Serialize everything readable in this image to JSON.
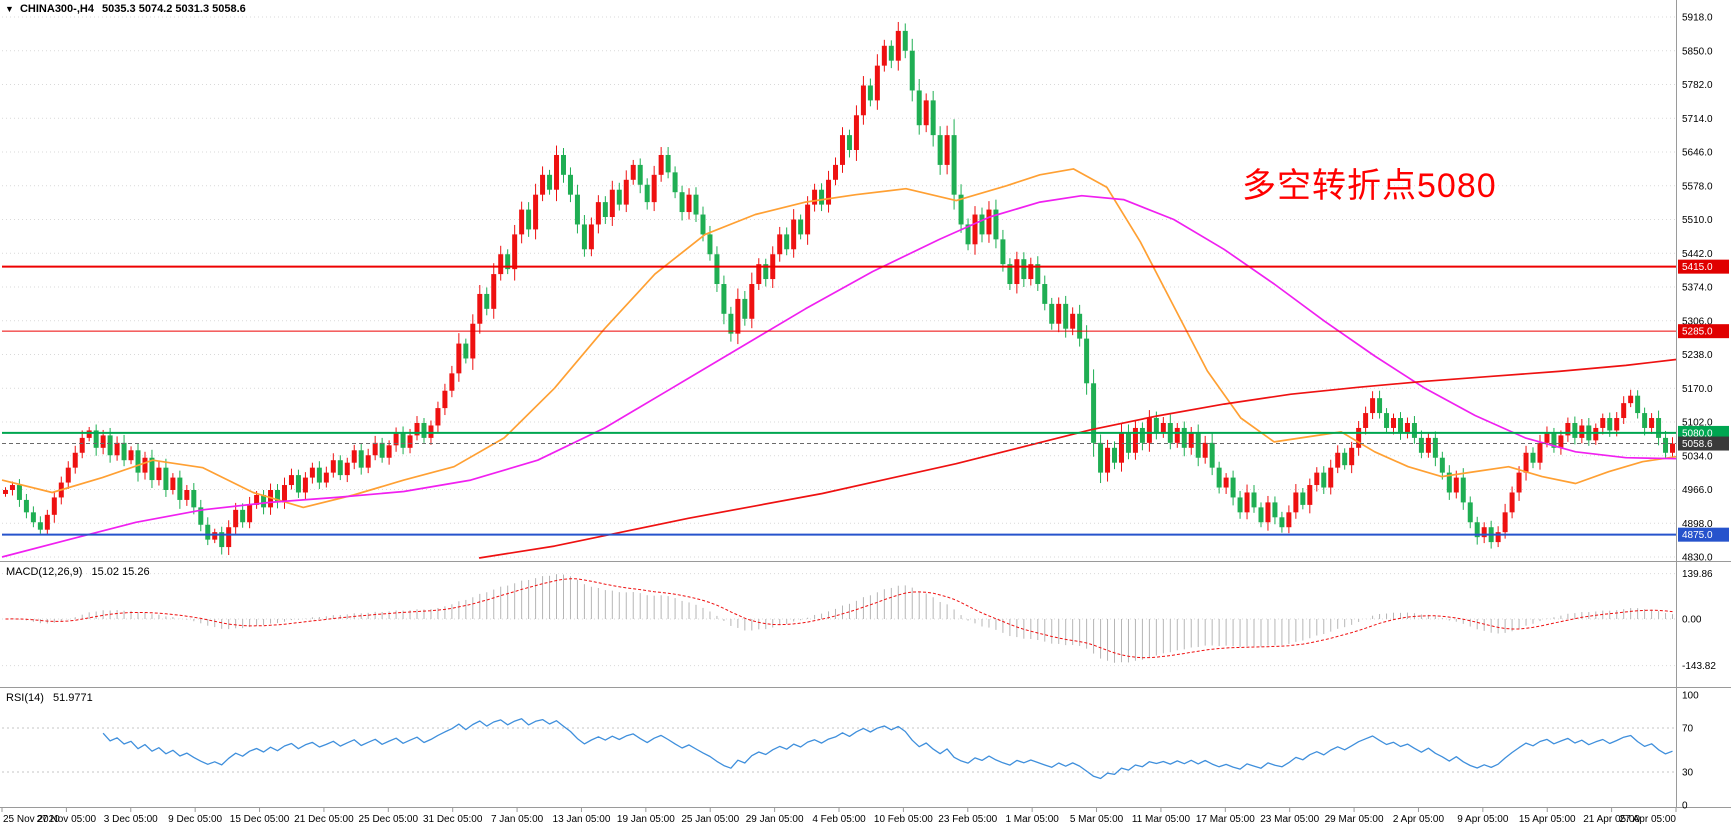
{
  "header": {
    "collapse_icon": "▼",
    "symbol": "CHINA300-,H4",
    "ohlc": "5035.3 5074.2 5031.3 5058.6"
  },
  "annotation": {
    "text": "多空转折点5080",
    "color": "#ff0000"
  },
  "colors": {
    "background": "#ffffff",
    "grid": "#d9d9d9",
    "separator": "#9a9a9a",
    "axis_text": "#000000",
    "tag_text": "#ffffff"
  },
  "chart_data": {
    "type": "candlestick",
    "title": "CHINA300-,H4",
    "timeframe": "H4",
    "up_color": "#ee1111",
    "down_color": "#1fae53",
    "y_ticks": [
      "5918.0",
      "5850.0",
      "5782.0",
      "5714.0",
      "5646.0",
      "5578.0",
      "5510.0",
      "5442.0",
      "5374.0",
      "5306.0",
      "5238.0",
      "5170.0",
      "5102.0",
      "5034.0",
      "4966.0",
      "4898.0",
      "4830.0"
    ],
    "time_labels": [
      "25 Nov 2020",
      "27 Nov 05:00",
      "3 Dec 05:00",
      "9 Dec 05:00",
      "15 Dec 05:00",
      "21 Dec 05:00",
      "25 Dec 05:00",
      "31 Dec 05:00",
      "7 Jan 05:00",
      "13 Jan 05:00",
      "19 Jan 05:00",
      "25 Jan 05:00",
      "29 Jan 05:00",
      "4 Feb 05:00",
      "10 Feb 05:00",
      "23 Feb 05:00",
      "1 Mar 05:00",
      "5 Mar 05:00",
      "11 Mar 05:00",
      "17 Mar 05:00",
      "23 Mar 05:00",
      "29 Mar 05:00",
      "2 Apr 05:00",
      "9 Apr 05:00",
      "15 Apr 05:00",
      "21 Apr 05:00",
      "27 Apr 05:00"
    ],
    "closes": [
      4965,
      4975,
      4945,
      4920,
      4900,
      4885,
      4915,
      4950,
      4980,
      5010,
      5040,
      5070,
      5085,
      5050,
      5075,
      5035,
      5060,
      5025,
      5045,
      5000,
      5030,
      4985,
      5010,
      4965,
      4990,
      4945,
      4965,
      4930,
      4895,
      4865,
      4880,
      4850,
      4890,
      4925,
      4900,
      4935,
      4955,
      4930,
      4965,
      4940,
      4975,
      4995,
      4960,
      4990,
      5010,
      4980,
      5000,
      5025,
      4995,
      5020,
      5045,
      5010,
      5035,
      5060,
      5030,
      5055,
      5080,
      5050,
      5075,
      5100,
      5070,
      5095,
      5130,
      5165,
      5200,
      5260,
      5230,
      5300,
      5360,
      5330,
      5400,
      5440,
      5410,
      5480,
      5530,
      5490,
      5560,
      5600,
      5570,
      5640,
      5600,
      5560,
      5500,
      5450,
      5500,
      5545,
      5515,
      5570,
      5540,
      5590,
      5620,
      5580,
      5545,
      5600,
      5640,
      5605,
      5565,
      5525,
      5560,
      5520,
      5480,
      5440,
      5380,
      5320,
      5280,
      5350,
      5310,
      5380,
      5420,
      5390,
      5440,
      5480,
      5450,
      5510,
      5480,
      5540,
      5570,
      5540,
      5590,
      5620,
      5680,
      5650,
      5720,
      5780,
      5750,
      5820,
      5860,
      5830,
      5890,
      5850,
      5770,
      5700,
      5750,
      5680,
      5620,
      5680,
      5560,
      5500,
      5460,
      5520,
      5480,
      5530,
      5470,
      5420,
      5380,
      5430,
      5390,
      5420,
      5380,
      5340,
      5300,
      5340,
      5290,
      5320,
      5270,
      5180,
      5060,
      5000,
      5050,
      5020,
      5080,
      5040,
      5090,
      5060,
      5110,
      5080,
      5100,
      5060,
      5090,
      5050,
      5080,
      5030,
      5060,
      5010,
      4970,
      4990,
      4950,
      4920,
      4960,
      4930,
      4900,
      4940,
      4910,
      4890,
      4920,
      4960,
      4935,
      4975,
      5000,
      4970,
      5010,
      5040,
      5015,
      5050,
      5090,
      5120,
      5150,
      5120,
      5090,
      5110,
      5080,
      5100,
      5070,
      5040,
      5070,
      5030,
      5000,
      4960,
      4990,
      4940,
      4900,
      4870,
      4890,
      4860,
      4880,
      4920,
      4960,
      5000,
      5040,
      5020,
      5060,
      5080,
      5050,
      5075,
      5100,
      5070,
      5095,
      5065,
      5090,
      5110,
      5085,
      5110,
      5140,
      5155,
      5120,
      5090,
      5110,
      5070,
      5040,
      5058.6
    ],
    "levels": [
      {
        "label": "5415.0",
        "price": 5415.0,
        "color": "#ee0000",
        "tag_color": "#e00000",
        "line_width": 2,
        "dash": null,
        "draggable": true
      },
      {
        "label": "5285.0",
        "price": 5285.0,
        "color": "#ee0000",
        "tag_color": "#e00000",
        "line_width": 1,
        "dash": null,
        "draggable": true
      },
      {
        "label": "5080.0",
        "price": 5080.0,
        "color": "#00a651",
        "tag_color": "#00a651",
        "line_width": 2,
        "dash": null,
        "draggable": true
      },
      {
        "label": "5058.6",
        "price": 5058.6,
        "color": "#6a6a6a",
        "tag_color": "#3a3a3a",
        "line_width": 1,
        "dash": "4 3",
        "draggable": false
      },
      {
        "label": "4875.0",
        "price": 4875.0,
        "color": "#2653cc",
        "tag_color": "#2653cc",
        "line_width": 2,
        "dash": null,
        "draggable": true
      }
    ],
    "moving_averages": [
      {
        "name": "fast",
        "color": "#ffa033",
        "points": [
          [
            0,
            4985
          ],
          [
            0.03,
            4960
          ],
          [
            0.06,
            4990
          ],
          [
            0.09,
            5025
          ],
          [
            0.12,
            5010
          ],
          [
            0.15,
            4960
          ],
          [
            0.18,
            4930
          ],
          [
            0.21,
            4955
          ],
          [
            0.24,
            4985
          ],
          [
            0.27,
            5012
          ],
          [
            0.3,
            5070
          ],
          [
            0.33,
            5170
          ],
          [
            0.36,
            5290
          ],
          [
            0.39,
            5400
          ],
          [
            0.42,
            5480
          ],
          [
            0.45,
            5520
          ],
          [
            0.48,
            5545
          ],
          [
            0.51,
            5560
          ],
          [
            0.54,
            5572
          ],
          [
            0.57,
            5548
          ],
          [
            0.6,
            5578
          ],
          [
            0.62,
            5600
          ],
          [
            0.64,
            5612
          ],
          [
            0.66,
            5575
          ],
          [
            0.68,
            5465
          ],
          [
            0.7,
            5335
          ],
          [
            0.72,
            5205
          ],
          [
            0.74,
            5110
          ],
          [
            0.76,
            5062
          ],
          [
            0.78,
            5072
          ],
          [
            0.8,
            5082
          ],
          [
            0.82,
            5042
          ],
          [
            0.84,
            5012
          ],
          [
            0.86,
            4992
          ],
          [
            0.88,
            5002
          ],
          [
            0.9,
            5012
          ],
          [
            0.92,
            4992
          ],
          [
            0.94,
            4978
          ],
          [
            0.96,
            5002
          ],
          [
            0.98,
            5022
          ],
          [
            1,
            5032
          ]
        ]
      },
      {
        "name": "mid",
        "color": "#f020f0",
        "points": [
          [
            0,
            4830
          ],
          [
            0.04,
            4865
          ],
          [
            0.08,
            4900
          ],
          [
            0.12,
            4925
          ],
          [
            0.16,
            4940
          ],
          [
            0.2,
            4950
          ],
          [
            0.24,
            4962
          ],
          [
            0.28,
            4985
          ],
          [
            0.32,
            5025
          ],
          [
            0.36,
            5090
          ],
          [
            0.4,
            5170
          ],
          [
            0.44,
            5250
          ],
          [
            0.48,
            5330
          ],
          [
            0.52,
            5405
          ],
          [
            0.56,
            5470
          ],
          [
            0.59,
            5515
          ],
          [
            0.62,
            5545
          ],
          [
            0.645,
            5558
          ],
          [
            0.67,
            5550
          ],
          [
            0.7,
            5510
          ],
          [
            0.73,
            5450
          ],
          [
            0.76,
            5380
          ],
          [
            0.79,
            5305
          ],
          [
            0.82,
            5235
          ],
          [
            0.85,
            5170
          ],
          [
            0.88,
            5115
          ],
          [
            0.91,
            5070
          ],
          [
            0.94,
            5042
          ],
          [
            0.97,
            5030
          ],
          [
            1,
            5028
          ]
        ]
      },
      {
        "name": "slow",
        "color": "#ee1111",
        "points": [
          [
            0.285,
            4828
          ],
          [
            0.33,
            4852
          ],
          [
            0.37,
            4880
          ],
          [
            0.41,
            4908
          ],
          [
            0.45,
            4933
          ],
          [
            0.49,
            4958
          ],
          [
            0.53,
            4988
          ],
          [
            0.57,
            5018
          ],
          [
            0.61,
            5052
          ],
          [
            0.65,
            5086
          ],
          [
            0.69,
            5114
          ],
          [
            0.73,
            5138
          ],
          [
            0.77,
            5158
          ],
          [
            0.81,
            5172
          ],
          [
            0.85,
            5184
          ],
          [
            0.89,
            5194
          ],
          [
            0.93,
            5204
          ],
          [
            0.97,
            5216
          ],
          [
            1,
            5228
          ]
        ]
      }
    ],
    "macd": {
      "label": "MACD(12,26,9)",
      "display_values": "15.02 15.26",
      "fast": 12,
      "slow": 26,
      "signal": 9,
      "ticks": [
        {
          "label": "139.86",
          "value": 139.86
        },
        {
          "label": "0.00",
          "value": 0
        },
        {
          "label": "-143.82",
          "value": -143.82
        }
      ],
      "histogram_color": "#b6b6b6",
      "signal_color": "#ee1111"
    },
    "rsi": {
      "label": "RSI(14)",
      "display_value": "51.9771",
      "period": 14,
      "ticks": [
        {
          "label": "100",
          "value": 100
        },
        {
          "label": "70",
          "value": 70
        },
        {
          "label": "30",
          "value": 30
        },
        {
          "label": "0",
          "value": 0
        }
      ],
      "level_lines": [
        70,
        30
      ],
      "color": "#3f8fdc"
    }
  }
}
